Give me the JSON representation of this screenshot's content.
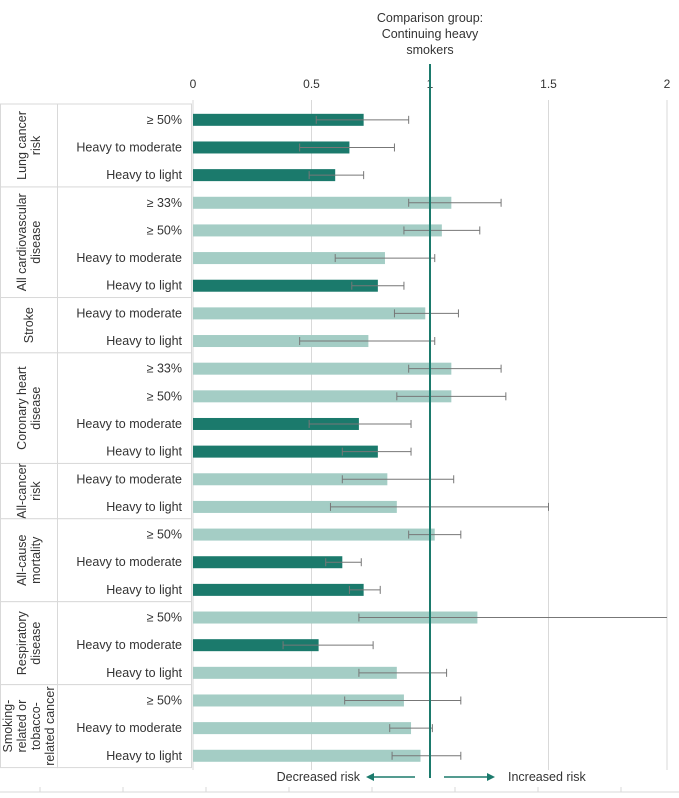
{
  "chart_data": {
    "type": "bar",
    "orientation": "horizontal",
    "annotation_title": [
      "Comparison group:",
      "Continuing heavy",
      "smokers"
    ],
    "xlim": [
      0,
      2
    ],
    "xticks": [
      "0",
      "0.5",
      "1",
      "1.5",
      "2"
    ],
    "reference_line": 1,
    "grid": true,
    "direction_labels": {
      "left": "Decreased risk",
      "right": "Increased risk"
    },
    "colors": {
      "significant": "#1b7a6c",
      "not_significant": "#a4cdc5",
      "reference": "#1b7a6c",
      "error_bar": "#777777"
    },
    "groups": [
      {
        "name": [
          "Lung cancer",
          "risk"
        ],
        "rows": [
          {
            "label": "≥ 50%",
            "value": 0.72,
            "ci": [
              0.52,
              0.91
            ],
            "significant": true
          },
          {
            "label": "Heavy to moderate",
            "value": 0.66,
            "ci": [
              0.45,
              0.85
            ],
            "significant": true
          },
          {
            "label": "Heavy to light",
            "value": 0.6,
            "ci": [
              0.49,
              0.72
            ],
            "significant": true
          }
        ]
      },
      {
        "name": [
          "All cardiovascular",
          "disease"
        ],
        "rows": [
          {
            "label": "≥ 33%",
            "value": 1.09,
            "ci": [
              0.91,
              1.3
            ],
            "significant": false
          },
          {
            "label": "≥ 50%",
            "value": 1.05,
            "ci": [
              0.89,
              1.21
            ],
            "significant": false
          },
          {
            "label": "Heavy to moderate",
            "value": 0.81,
            "ci": [
              0.6,
              1.02
            ],
            "significant": false
          },
          {
            "label": "Heavy to light",
            "value": 0.78,
            "ci": [
              0.67,
              0.89
            ],
            "significant": true
          }
        ]
      },
      {
        "name": [
          "Stroke"
        ],
        "rows": [
          {
            "label": "Heavy to moderate",
            "value": 0.98,
            "ci": [
              0.85,
              1.12
            ],
            "significant": false
          },
          {
            "label": "Heavy to light",
            "value": 0.74,
            "ci": [
              0.45,
              1.02
            ],
            "significant": false
          }
        ]
      },
      {
        "name": [
          "Coronary heart",
          "disease"
        ],
        "rows": [
          {
            "label": "≥ 33%",
            "value": 1.09,
            "ci": [
              0.91,
              1.3
            ],
            "significant": false
          },
          {
            "label": "≥ 50%",
            "value": 1.09,
            "ci": [
              0.86,
              1.32
            ],
            "significant": false
          },
          {
            "label": "Heavy to moderate",
            "value": 0.7,
            "ci": [
              0.49,
              0.92
            ],
            "significant": true
          },
          {
            "label": "Heavy to light",
            "value": 0.78,
            "ci": [
              0.63,
              0.92
            ],
            "significant": true
          }
        ]
      },
      {
        "name": [
          "All-cancer",
          "risk"
        ],
        "rows": [
          {
            "label": "Heavy to moderate",
            "value": 0.82,
            "ci": [
              0.63,
              1.1
            ],
            "significant": false
          },
          {
            "label": "Heavy to light",
            "value": 0.86,
            "ci": [
              0.58,
              1.5
            ],
            "significant": false
          }
        ]
      },
      {
        "name": [
          "All-cause",
          "mortality"
        ],
        "rows": [
          {
            "label": "≥ 50%",
            "value": 1.02,
            "ci": [
              0.91,
              1.13
            ],
            "significant": false
          },
          {
            "label": "Heavy to moderate",
            "value": 0.63,
            "ci": [
              0.56,
              0.71
            ],
            "significant": true
          },
          {
            "label": "Heavy to light",
            "value": 0.72,
            "ci": [
              0.66,
              0.79
            ],
            "significant": true
          }
        ]
      },
      {
        "name": [
          "Respiratory",
          "disease"
        ],
        "rows": [
          {
            "label": "≥ 50%",
            "value": 1.2,
            "ci": [
              0.7,
              2.0
            ],
            "significant": false
          },
          {
            "label": "Heavy to moderate",
            "value": 0.53,
            "ci": [
              0.38,
              0.76
            ],
            "significant": true
          },
          {
            "label": "Heavy to light",
            "value": 0.86,
            "ci": [
              0.7,
              1.07
            ],
            "significant": false
          }
        ]
      },
      {
        "name": [
          "Smoking-",
          "related or",
          "tobacco-",
          "related cancer"
        ],
        "rows": [
          {
            "label": "≥ 50%",
            "value": 0.89,
            "ci": [
              0.64,
              1.13
            ],
            "significant": false
          },
          {
            "label": "Heavy to moderate",
            "value": 0.92,
            "ci": [
              0.83,
              1.01
            ],
            "significant": false
          },
          {
            "label": "Heavy to light",
            "value": 0.96,
            "ci": [
              0.84,
              1.13
            ],
            "significant": false
          }
        ]
      }
    ]
  }
}
